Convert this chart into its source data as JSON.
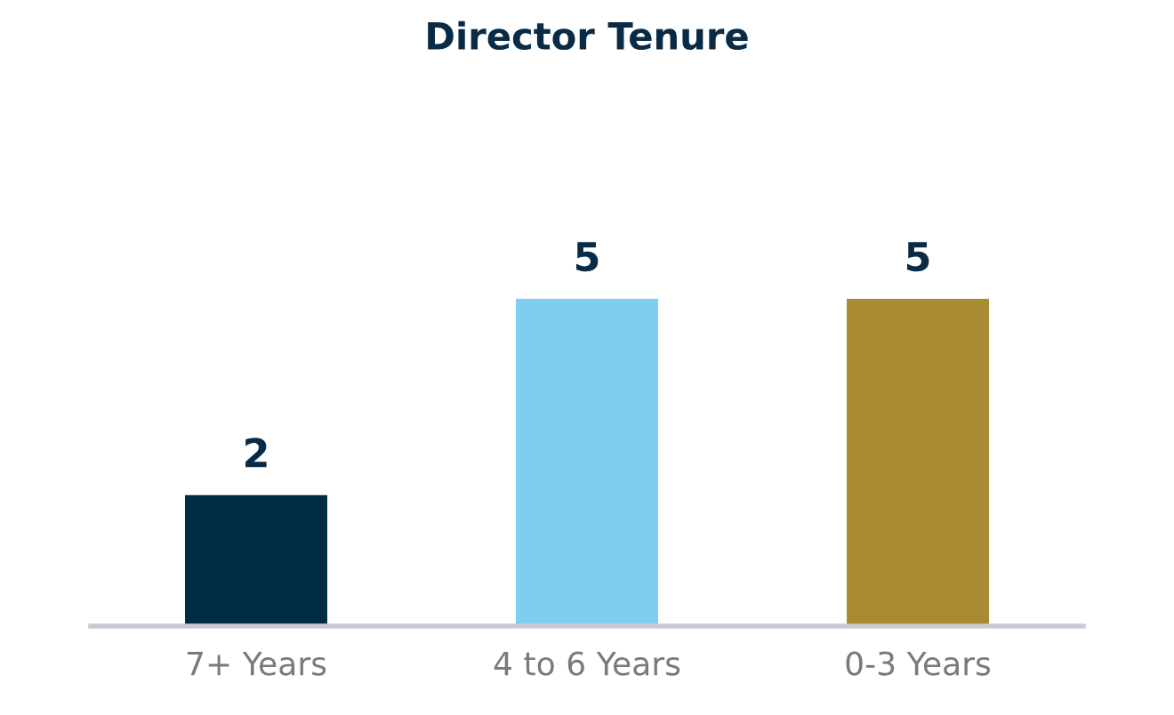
{
  "chart_data": {
    "type": "bar",
    "title": "Director Tenure",
    "categories": [
      "7+ Years",
      "4 to 6 Years",
      "0-3 Years"
    ],
    "values": [
      2,
      5,
      5
    ],
    "colors": [
      "#002b45",
      "#7ecef2",
      "#a88a30"
    ],
    "data_labels": true,
    "grid": false,
    "legend": false
  }
}
